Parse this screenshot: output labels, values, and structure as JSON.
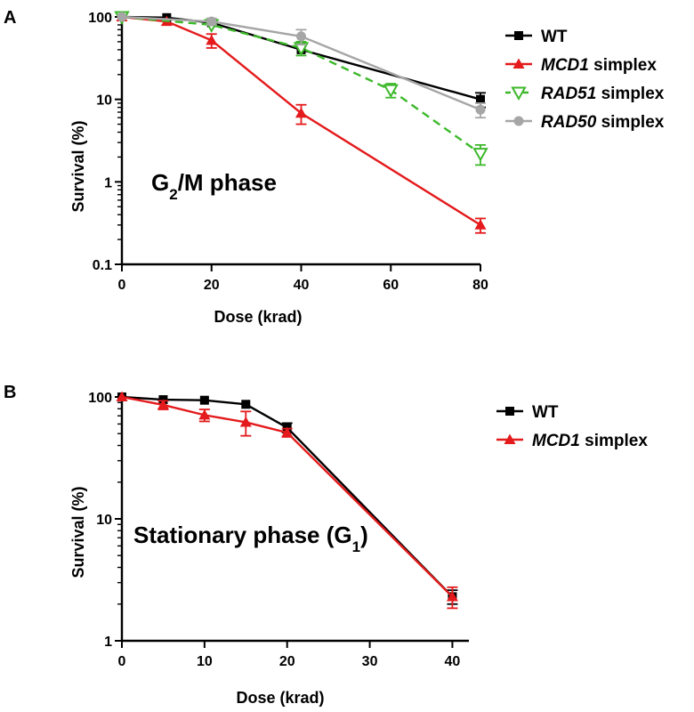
{
  "chart_data": [
    {
      "panel": "A",
      "type": "line",
      "xlabel": "Dose (krad)",
      "ylabel": "Survival (%)",
      "xlim": [
        0,
        80
      ],
      "ylim": [
        0.1,
        100
      ],
      "yscale": "log",
      "xticks": [
        "0",
        "20",
        "40",
        "60",
        "80"
      ],
      "yticks": [
        "0.1",
        "1",
        "10",
        "100"
      ],
      "annotation": "G2/M phase",
      "legend": {
        "placement": "right"
      },
      "series": [
        {
          "name": "WT",
          "name_italic": "",
          "name_rest": "WT",
          "color": "#000000",
          "marker": "square",
          "dash": "solid",
          "x": [
            0,
            10,
            20,
            40,
            80
          ],
          "y": [
            100,
            98,
            85,
            40,
            10
          ],
          "err": [
            0,
            0,
            0,
            0,
            2
          ]
        },
        {
          "name": "MCD1 simplex",
          "name_italic": "MCD1",
          "name_rest": " simplex",
          "color": "#e41a1c",
          "marker": "triangle",
          "dash": "solid",
          "x": [
            0,
            10,
            20,
            40,
            80
          ],
          "y": [
            100,
            88,
            52,
            6.8,
            0.3
          ],
          "err": [
            0,
            0,
            10,
            1.8,
            0.06
          ]
        },
        {
          "name": "RAD51 simplex",
          "name_italic": "RAD51",
          "name_rest": " simplex",
          "color": "#3cb82a",
          "marker": "triangle-down",
          "dash": "dashed",
          "x": [
            0,
            20,
            40,
            60,
            80
          ],
          "y": [
            100,
            80,
            42,
            13,
            2.2
          ],
          "err": [
            0,
            0,
            8,
            2.5,
            0.6
          ]
        },
        {
          "name": "RAD50 simplex",
          "name_italic": "RAD50",
          "name_rest": " simplex",
          "color": "#a6a6a6",
          "marker": "circle",
          "dash": "solid",
          "x": [
            0,
            20,
            40,
            80
          ],
          "y": [
            100,
            88,
            58,
            7.5
          ],
          "err": [
            0,
            8,
            12,
            1.5
          ]
        }
      ]
    },
    {
      "panel": "B",
      "type": "line",
      "xlabel": "Dose (krad)",
      "ylabel": "Survival (%)",
      "xlim": [
        0,
        42
      ],
      "ylim": [
        1,
        100
      ],
      "yscale": "log",
      "xticks": [
        "0",
        "10",
        "20",
        "30",
        "40"
      ],
      "yticks": [
        "1",
        "10",
        "100"
      ],
      "annotation": "Stationary phase (G1)",
      "legend": {
        "placement": "right"
      },
      "series": [
        {
          "name": "WT",
          "name_italic": "",
          "name_rest": "WT",
          "color": "#000000",
          "marker": "square",
          "dash": "solid",
          "x": [
            0,
            5,
            10,
            15,
            20,
            40
          ],
          "y": [
            100,
            95,
            94,
            87,
            56,
            2.3
          ],
          "err": [
            0,
            0,
            0,
            0,
            5,
            0.3
          ]
        },
        {
          "name": "MCD1 simplex",
          "name_italic": "MCD1",
          "name_rest": " simplex",
          "color": "#e41a1c",
          "marker": "triangle",
          "dash": "solid",
          "x": [
            0,
            5,
            10,
            15,
            20,
            40
          ],
          "y": [
            100,
            86,
            71,
            62,
            51,
            2.3
          ],
          "err": [
            0,
            7,
            8,
            14,
            4,
            0.45
          ]
        }
      ]
    }
  ]
}
